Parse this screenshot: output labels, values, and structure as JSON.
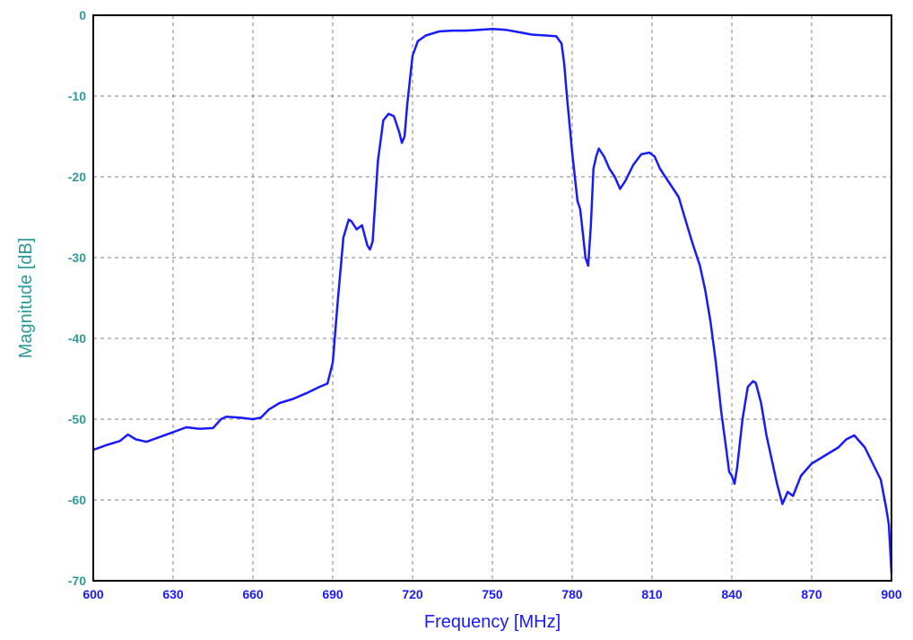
{
  "chart_data": {
    "type": "line",
    "title": "",
    "xlabel": "Frequency [MHz]",
    "ylabel": "Magnitude [dB]",
    "xlim": [
      600,
      900
    ],
    "ylim": [
      -70,
      0
    ],
    "x_ticks": [
      "600",
      "630",
      "660",
      "690",
      "720",
      "750",
      "780",
      "810",
      "840",
      "870",
      "900"
    ],
    "y_ticks": [
      "0",
      "-10",
      "-20",
      "-30",
      "-40",
      "-50",
      "-60",
      "-70"
    ],
    "grid": true,
    "grid_style": "dashed",
    "colors": {
      "line": "#1a1aff",
      "x_tick_text": "#1a1aff",
      "y_tick_text": "#2f9a9a",
      "grid": "#808080",
      "frame": "#000000"
    },
    "series": [
      {
        "x": [
          600,
          605,
          610,
          613,
          616,
          620,
          625,
          630,
          635,
          640,
          645,
          648,
          650,
          655,
          660,
          663,
          666,
          670,
          675,
          680,
          685,
          688,
          690,
          692,
          694,
          696,
          697,
          699,
          701,
          703,
          704,
          705,
          707,
          709,
          711,
          713,
          715,
          716,
          717,
          718,
          720,
          722,
          725,
          730,
          735,
          740,
          745,
          750,
          755,
          760,
          765,
          770,
          774,
          776,
          777,
          778,
          780,
          782,
          783,
          784,
          785,
          786,
          787,
          788,
          789,
          790,
          792,
          794,
          796,
          798,
          800,
          803,
          806,
          809,
          811,
          813,
          816,
          820,
          825,
          828,
          830,
          832,
          834,
          836,
          838,
          839,
          840,
          841,
          842,
          844,
          846,
          848,
          849,
          851,
          853,
          855,
          857,
          859,
          861,
          863,
          866,
          870,
          875,
          880,
          883,
          886,
          890,
          893,
          896,
          898,
          899,
          900
        ],
        "values": [
          -53.8,
          -53.2,
          -52.7,
          -51.9,
          -52.5,
          -52.8,
          -52.2,
          -51.6,
          -51.0,
          -51.2,
          -51.1,
          -50.0,
          -49.7,
          -49.8,
          -50.0,
          -49.8,
          -48.8,
          -48.0,
          -47.5,
          -46.8,
          -46.0,
          -45.6,
          -43.0,
          -35.0,
          -27.5,
          -25.3,
          -25.5,
          -26.5,
          -26.0,
          -28.5,
          -29.0,
          -28.0,
          -18.0,
          -13.0,
          -12.2,
          -12.5,
          -14.5,
          -15.8,
          -15.0,
          -11.0,
          -5.0,
          -3.2,
          -2.5,
          -2.0,
          -1.9,
          -1.9,
          -1.8,
          -1.7,
          -1.8,
          -2.1,
          -2.4,
          -2.5,
          -2.6,
          -3.5,
          -6.0,
          -10.0,
          -17.0,
          -23.0,
          -24.0,
          -27.0,
          -30.0,
          -31.0,
          -26.0,
          -19.0,
          -17.5,
          -16.5,
          -17.5,
          -19.0,
          -20.0,
          -21.5,
          -20.5,
          -18.5,
          -17.2,
          -17.0,
          -17.5,
          -19.0,
          -20.5,
          -22.5,
          -28.0,
          -31.0,
          -34.0,
          -38.0,
          -43.0,
          -49.0,
          -54.0,
          -56.5,
          -57.0,
          -58.0,
          -56.0,
          -50.0,
          -46.0,
          -45.3,
          -45.5,
          -48.0,
          -52.0,
          -55.0,
          -58.0,
          -60.5,
          -59.0,
          -59.5,
          -57.0,
          -55.5,
          -54.5,
          -53.5,
          -52.5,
          -52.0,
          -53.5,
          -55.5,
          -57.5,
          -61.0,
          -63.0,
          -69.0
        ]
      }
    ]
  }
}
